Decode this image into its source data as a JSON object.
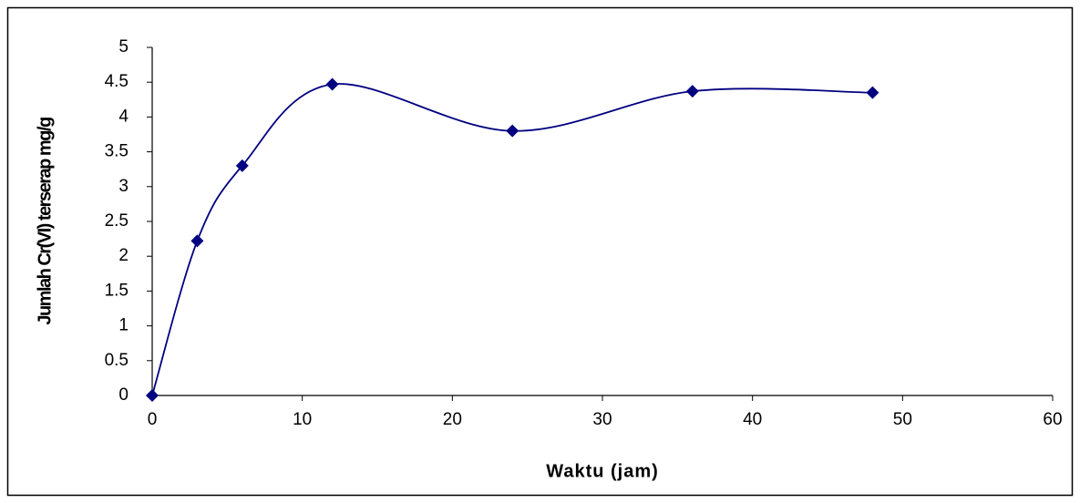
{
  "chart_data": {
    "type": "line",
    "x_label": "Waktu (jam)",
    "y_label": "Jumlah Cr(VI) terserap mg/g",
    "x": [
      0,
      3,
      6,
      12,
      24,
      36,
      48
    ],
    "values": [
      0,
      2.22,
      3.3,
      4.47,
      3.8,
      4.37,
      4.35
    ],
    "color": "#000080",
    "smooth": true,
    "marker": "diamond",
    "xlim": [
      0,
      60
    ],
    "xticks": [
      0,
      10,
      20,
      30,
      40,
      50,
      60
    ],
    "ylim": [
      0,
      5
    ],
    "yticks": [
      0,
      0.5,
      1,
      1.5,
      2,
      2.5,
      3,
      3.5,
      4,
      4.5,
      5
    ]
  }
}
